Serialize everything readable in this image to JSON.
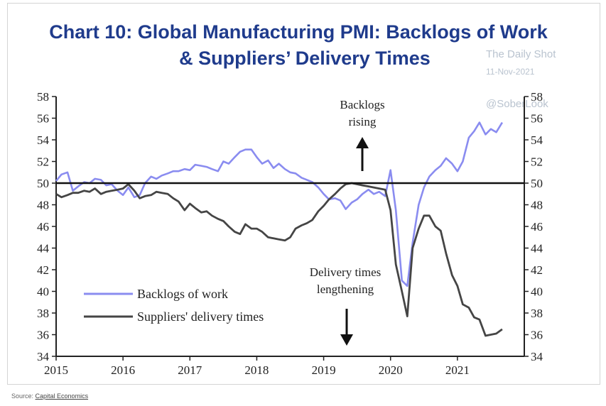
{
  "title_line1": "Chart 10: Global Manufacturing PMI: Backlogs of Work",
  "title_line2": "& Suppliers’ Delivery Times",
  "watermark": {
    "site": "The Daily Shot",
    "date": "11-Nov-2021",
    "handle": "@SoberLook"
  },
  "source": {
    "label": "Source: ",
    "link": "Capital Economics"
  },
  "colors": {
    "backlogs": "#8a8cf0",
    "delivery": "#454545",
    "title": "#1f3b8c"
  },
  "chart_data": {
    "type": "line",
    "title": "Chart 10: Global Manufacturing PMI: Backlogs of Work & Suppliers’ Delivery Times",
    "xlabel": "",
    "ylabel": "",
    "xlim": [
      2015,
      2022
    ],
    "ylim": [
      34,
      58
    ],
    "x_ticks": [
      "2015",
      "2016",
      "2017",
      "2018",
      "2019",
      "2020",
      "2021"
    ],
    "y_ticks": [
      "34",
      "36",
      "38",
      "40",
      "42",
      "44",
      "46",
      "48",
      "50",
      "52",
      "54",
      "56",
      "58"
    ],
    "reference_line": 50,
    "legend_position": "lower-left",
    "annotations": [
      {
        "text": "Backlogs",
        "text2": "rising",
        "arrow": "up"
      },
      {
        "text": "Delivery times",
        "text2": "lengthening",
        "arrow": "down"
      }
    ],
    "series": [
      {
        "name": "Backlogs of work",
        "x": [
          2015.0,
          2015.08,
          2015.17,
          2015.25,
          2015.33,
          2015.42,
          2015.5,
          2015.58,
          2015.67,
          2015.75,
          2015.83,
          2015.92,
          2016.0,
          2016.08,
          2016.17,
          2016.25,
          2016.33,
          2016.42,
          2016.5,
          2016.58,
          2016.67,
          2016.75,
          2016.83,
          2016.92,
          2017.0,
          2017.08,
          2017.17,
          2017.25,
          2017.33,
          2017.42,
          2017.5,
          2017.58,
          2017.67,
          2017.75,
          2017.83,
          2017.92,
          2018.0,
          2018.08,
          2018.17,
          2018.25,
          2018.33,
          2018.42,
          2018.5,
          2018.58,
          2018.67,
          2018.75,
          2018.83,
          2018.92,
          2019.0,
          2019.08,
          2019.17,
          2019.25,
          2019.33,
          2019.42,
          2019.5,
          2019.58,
          2019.67,
          2019.75,
          2019.83,
          2019.92,
          2020.0,
          2020.08,
          2020.17,
          2020.25,
          2020.33,
          2020.42,
          2020.5,
          2020.58,
          2020.67,
          2020.75,
          2020.83,
          2020.92,
          2021.0,
          2021.08,
          2021.17,
          2021.25,
          2021.33,
          2021.42,
          2021.5,
          2021.58,
          2021.67
        ],
        "values": [
          50.2,
          50.8,
          51.0,
          49.3,
          49.7,
          50.1,
          50.0,
          50.4,
          50.3,
          49.8,
          49.9,
          49.3,
          48.9,
          49.6,
          48.7,
          48.9,
          50.0,
          50.6,
          50.4,
          50.7,
          50.9,
          51.1,
          51.1,
          51.3,
          51.2,
          51.7,
          51.6,
          51.5,
          51.3,
          51.1,
          52.0,
          51.8,
          52.4,
          52.9,
          53.1,
          53.1,
          52.4,
          51.8,
          52.1,
          51.4,
          51.8,
          51.3,
          51.0,
          50.9,
          50.5,
          50.3,
          50.1,
          49.6,
          49.0,
          48.5,
          48.6,
          48.4,
          47.6,
          48.2,
          48.5,
          49.0,
          49.4,
          49.0,
          49.2,
          48.8,
          51.2,
          47.5,
          41.0,
          40.5,
          44.5,
          48.0,
          49.6,
          50.6,
          51.2,
          51.6,
          52.3,
          51.8,
          51.1,
          52.0,
          54.2,
          54.8,
          55.6,
          54.5,
          55.0,
          54.7,
          55.6
        ]
      },
      {
        "name": "Suppliers' delivery times",
        "x": [
          2015.0,
          2015.08,
          2015.17,
          2015.25,
          2015.33,
          2015.42,
          2015.5,
          2015.58,
          2015.67,
          2015.75,
          2015.83,
          2015.92,
          2016.0,
          2016.08,
          2016.17,
          2016.25,
          2016.33,
          2016.42,
          2016.5,
          2016.58,
          2016.67,
          2016.75,
          2016.83,
          2016.92,
          2017.0,
          2017.08,
          2017.17,
          2017.25,
          2017.33,
          2017.42,
          2017.5,
          2017.58,
          2017.67,
          2017.75,
          2017.83,
          2017.92,
          2018.0,
          2018.08,
          2018.17,
          2018.25,
          2018.33,
          2018.42,
          2018.5,
          2018.58,
          2018.67,
          2018.75,
          2018.83,
          2018.92,
          2019.0,
          2019.08,
          2019.17,
          2019.25,
          2019.33,
          2019.42,
          2019.5,
          2019.58,
          2019.67,
          2019.75,
          2019.83,
          2019.92,
          2020.0,
          2020.08,
          2020.17,
          2020.25,
          2020.33,
          2020.42,
          2020.5,
          2020.58,
          2020.67,
          2020.75,
          2020.83,
          2020.92,
          2021.0,
          2021.08,
          2021.17,
          2021.25,
          2021.33,
          2021.42,
          2021.5,
          2021.58,
          2021.67
        ],
        "values": [
          49.0,
          48.7,
          48.9,
          49.1,
          49.1,
          49.3,
          49.2,
          49.5,
          49.0,
          49.2,
          49.3,
          49.4,
          49.5,
          49.9,
          49.3,
          48.6,
          48.8,
          48.9,
          49.2,
          49.1,
          49.0,
          48.6,
          48.3,
          47.5,
          48.1,
          47.7,
          47.3,
          47.4,
          47.0,
          46.7,
          46.5,
          46.0,
          45.5,
          45.3,
          46.2,
          45.8,
          45.8,
          45.5,
          45.0,
          44.9,
          44.8,
          44.7,
          45.0,
          45.8,
          46.1,
          46.3,
          46.6,
          47.4,
          47.9,
          48.5,
          49.0,
          49.5,
          49.9,
          50.0,
          49.9,
          49.8,
          49.7,
          49.6,
          49.5,
          49.4,
          47.5,
          42.5,
          40.0,
          37.7,
          44.0,
          45.8,
          47.0,
          47.0,
          46.0,
          45.6,
          43.5,
          41.5,
          40.5,
          38.8,
          38.5,
          37.6,
          37.4,
          35.9,
          36.0,
          36.1,
          36.5
        ]
      }
    ]
  }
}
